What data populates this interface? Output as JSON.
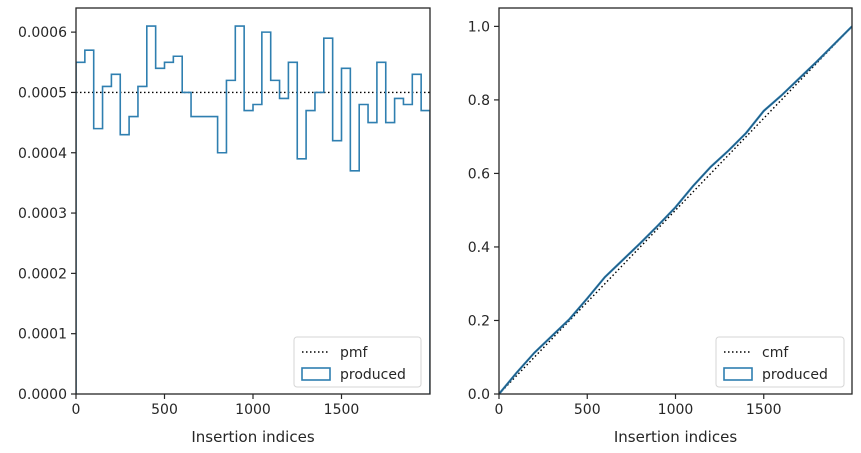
{
  "chart_data": [
    {
      "type": "histogram-step",
      "xlabel": "Insertion indices",
      "ylabel": "",
      "xlim": [
        0,
        2000
      ],
      "ylim": [
        0,
        0.00064
      ],
      "xticks": [
        0,
        500,
        1000,
        1500
      ],
      "xtick_labels": [
        "0",
        "500",
        "1000",
        "1500"
      ],
      "yticks": [
        0,
        0.0001,
        0.0002,
        0.0003,
        0.0004,
        0.0005,
        0.0006
      ],
      "ytick_labels": [
        "0.0000",
        "0.0001",
        "0.0002",
        "0.0003",
        "0.0004",
        "0.0005",
        "0.0006"
      ],
      "grid": false,
      "legend_position": "lower-right",
      "reference_line": {
        "name": "pmf",
        "value": 0.0005,
        "style": "dotted",
        "color": "#000000"
      },
      "produced": {
        "name": "produced",
        "color": "#2f7fb0",
        "bin_edges": [
          0,
          50,
          100,
          150,
          200,
          250,
          300,
          350,
          400,
          450,
          500,
          550,
          600,
          650,
          700,
          750,
          800,
          850,
          900,
          950,
          1000,
          1050,
          1100,
          1150,
          1200,
          1250,
          1300,
          1350,
          1400,
          1450,
          1500,
          1550,
          1600,
          1650,
          1700,
          1750,
          1800,
          1850,
          1900,
          1950,
          2000
        ],
        "values": [
          0.00055,
          0.00057,
          0.00044,
          0.00051,
          0.00053,
          0.00043,
          0.00046,
          0.00051,
          0.00061,
          0.00054,
          0.00055,
          0.00056,
          0.0005,
          0.00046,
          0.00046,
          0.00046,
          0.0004,
          0.00052,
          0.00061,
          0.00047,
          0.00048,
          0.0006,
          0.00052,
          0.00049,
          0.00055,
          0.00039,
          0.00047,
          0.0005,
          0.00059,
          0.00042,
          0.00054,
          0.00037,
          0.00048,
          0.00045,
          0.00055,
          0.00045,
          0.00049,
          0.00048,
          0.00053,
          0.00047
        ]
      }
    },
    {
      "type": "line",
      "xlabel": "Insertion indices",
      "ylabel": "",
      "xlim": [
        0,
        2000
      ],
      "ylim": [
        0,
        1.05
      ],
      "xticks": [
        0,
        500,
        1000,
        1500
      ],
      "xtick_labels": [
        "0",
        "500",
        "1000",
        "1500"
      ],
      "yticks": [
        0,
        0.2,
        0.4,
        0.6,
        0.8,
        1.0
      ],
      "ytick_labels": [
        "0.0",
        "0.2",
        "0.4",
        "0.6",
        "0.8",
        "1.0"
      ],
      "grid": false,
      "legend_position": "lower-right",
      "reference_line": {
        "name": "cmf",
        "x": [
          0,
          2000
        ],
        "y": [
          0,
          1.0
        ],
        "style": "dotted",
        "color": "#000000"
      },
      "produced": {
        "name": "produced",
        "color": "#2f7fb0",
        "x": [
          0,
          100,
          200,
          300,
          400,
          500,
          600,
          700,
          800,
          900,
          1000,
          1100,
          1200,
          1300,
          1400,
          1500,
          1600,
          1700,
          1800,
          1900,
          2000
        ],
        "y": [
          0,
          0.058,
          0.112,
          0.158,
          0.204,
          0.26,
          0.318,
          0.364,
          0.41,
          0.458,
          0.508,
          0.566,
          0.618,
          0.662,
          0.71,
          0.77,
          0.812,
          0.858,
          0.904,
          0.952,
          1.0
        ]
      }
    }
  ]
}
